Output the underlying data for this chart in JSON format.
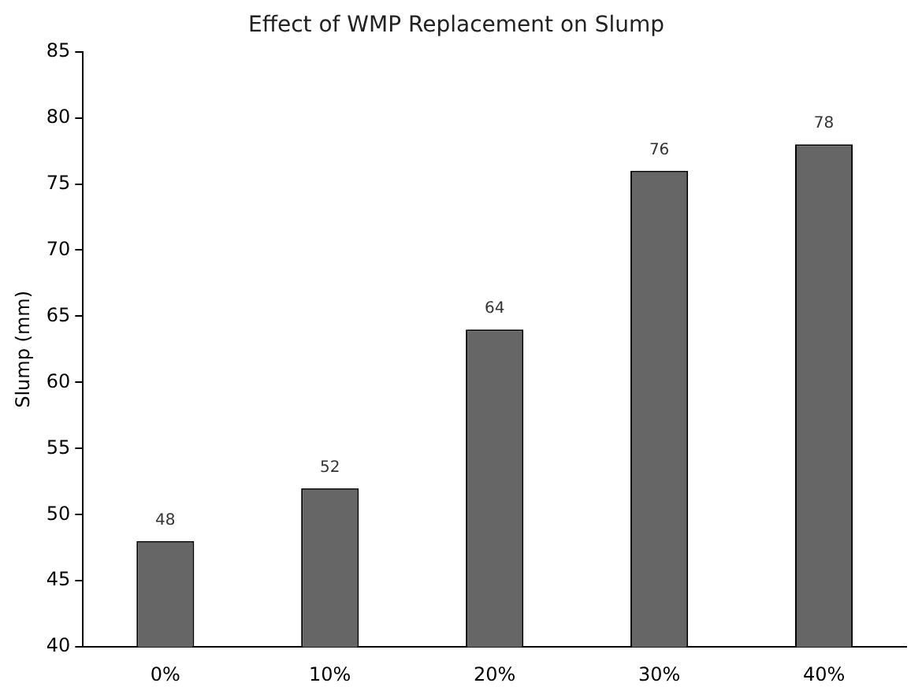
{
  "chart_data": {
    "type": "bar",
    "title": "Effect of WMP Replacement on Slump",
    "ylabel": "Slump (mm)",
    "categories": [
      "0%",
      "10%",
      "20%",
      "30%",
      "40%"
    ],
    "values": [
      48,
      52,
      64,
      76,
      78
    ],
    "color": "#666666",
    "ylim": [
      40,
      85
    ],
    "yticks": [
      40,
      45,
      50,
      55,
      60,
      65,
      70,
      75,
      80,
      85
    ],
    "grid": false,
    "legend": false,
    "data_labels": true
  }
}
